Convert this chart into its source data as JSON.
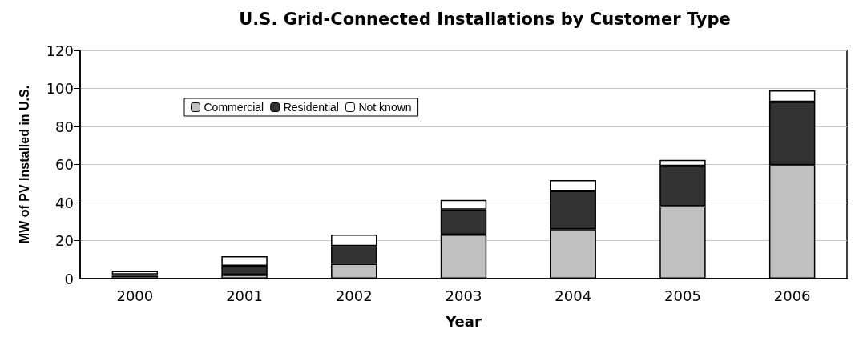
{
  "chart_data": {
    "type": "bar",
    "title": "U.S. Grid-Connected Installations by Customer Type",
    "xlabel": "Year",
    "ylabel": "MW of PV Installed in U.S.",
    "categories": [
      "2000",
      "2001",
      "2002",
      "2003",
      "2004",
      "2005",
      "2006"
    ],
    "stacked": true,
    "series": [
      {
        "name": "Commercial",
        "color": "#c0c0c0",
        "values": [
          1.5,
          2,
          7.8,
          23.2,
          26,
          38.1,
          59.7
        ]
      },
      {
        "name": "Residential",
        "color": "#333333",
        "values": [
          0.7,
          4.7,
          9.4,
          13.1,
          20.1,
          21.2,
          33.2
        ]
      },
      {
        "name": "Not known",
        "color": "#ffffff",
        "values": [
          1.8,
          5.1,
          6,
          5.1,
          5.7,
          3.1,
          6.1
        ]
      }
    ],
    "ylim": [
      0,
      120
    ],
    "yticks": [
      0,
      20,
      40,
      60,
      80,
      100,
      120
    ],
    "grid": "y",
    "legend": "top left"
  }
}
